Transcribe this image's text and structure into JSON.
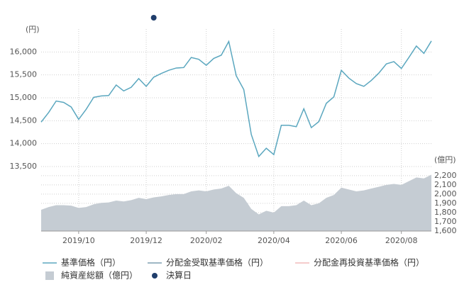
{
  "chart_data": {
    "type": "line",
    "y_unit": "(円)",
    "y2_unit": "(億円)",
    "categories": [
      null,
      null,
      null,
      null,
      null,
      "2019/10",
      null,
      null,
      null,
      null,
      null,
      null,
      null,
      null,
      "2019/12",
      null,
      null,
      null,
      null,
      null,
      null,
      null,
      "2020/02",
      null,
      null,
      null,
      null,
      null,
      null,
      null,
      null,
      "2020/04",
      null,
      null,
      null,
      null,
      null,
      null,
      null,
      null,
      "2020/06",
      null,
      null,
      null,
      null,
      null,
      null,
      null,
      "2020/08",
      null,
      null,
      null,
      null
    ],
    "ylim": [
      13500,
      16500
    ],
    "yticks": [
      {
        "value": 13500,
        "label": "13,500"
      },
      {
        "value": 14000,
        "label": "14,000"
      },
      {
        "value": 14500,
        "label": "14,500"
      },
      {
        "value": 15000,
        "label": "15,000"
      },
      {
        "value": 15500,
        "label": "15,500"
      },
      {
        "value": 16000,
        "label": "16,000"
      }
    ],
    "y2lim": [
      1600,
      2260
    ],
    "y2ticks": [
      {
        "value": 1600,
        "label": "1,600"
      },
      {
        "value": 1700,
        "label": "1,700"
      },
      {
        "value": 1800,
        "label": "1,800"
      },
      {
        "value": 1900,
        "label": "1,900"
      },
      {
        "value": 2000,
        "label": "2,000"
      },
      {
        "value": 2100,
        "label": "2,100"
      },
      {
        "value": 2200,
        "label": "2,200"
      }
    ],
    "grid": true,
    "series": [
      {
        "name": "基準価格（円）",
        "color": "#5ba7bf",
        "values": [
          14470,
          14680,
          14930,
          14900,
          14800,
          14530,
          14750,
          15010,
          15040,
          15050,
          15280,
          15150,
          15230,
          15420,
          15250,
          15450,
          15530,
          15600,
          15650,
          15660,
          15880,
          15840,
          15710,
          15860,
          15930,
          16230,
          15480,
          15180,
          14200,
          13720,
          13900,
          13760,
          14400,
          14400,
          14370,
          14760,
          14350,
          14480,
          14880,
          15020,
          15600,
          15430,
          15310,
          15250,
          15380,
          15540,
          15740,
          15790,
          15640,
          15880,
          16130,
          15970,
          16240
        ]
      },
      {
        "name": "分配金受取基準価格（円）",
        "color": "#7f9fb0"
      },
      {
        "name": "分配金再投資基準価格（円）",
        "color": "#f2bcbc"
      },
      {
        "name": "純資産総額（億円）",
        "color": "#c5ccd3",
        "type": "area",
        "axis": "y2",
        "values": [
          1830,
          1860,
          1880,
          1880,
          1875,
          1850,
          1860,
          1890,
          1905,
          1910,
          1930,
          1920,
          1935,
          1960,
          1945,
          1965,
          1975,
          1990,
          2000,
          2000,
          2030,
          2040,
          2030,
          2050,
          2060,
          2090,
          2010,
          1960,
          1840,
          1780,
          1820,
          1800,
          1870,
          1870,
          1880,
          1930,
          1880,
          1900,
          1960,
          1990,
          2070,
          2050,
          2030,
          2040,
          2060,
          2080,
          2100,
          2110,
          2100,
          2140,
          2180,
          2170,
          2210
        ]
      },
      {
        "name": "決算日",
        "color": "#1f3d6b",
        "type": "marker",
        "x_index": [
          15
        ]
      }
    ]
  }
}
